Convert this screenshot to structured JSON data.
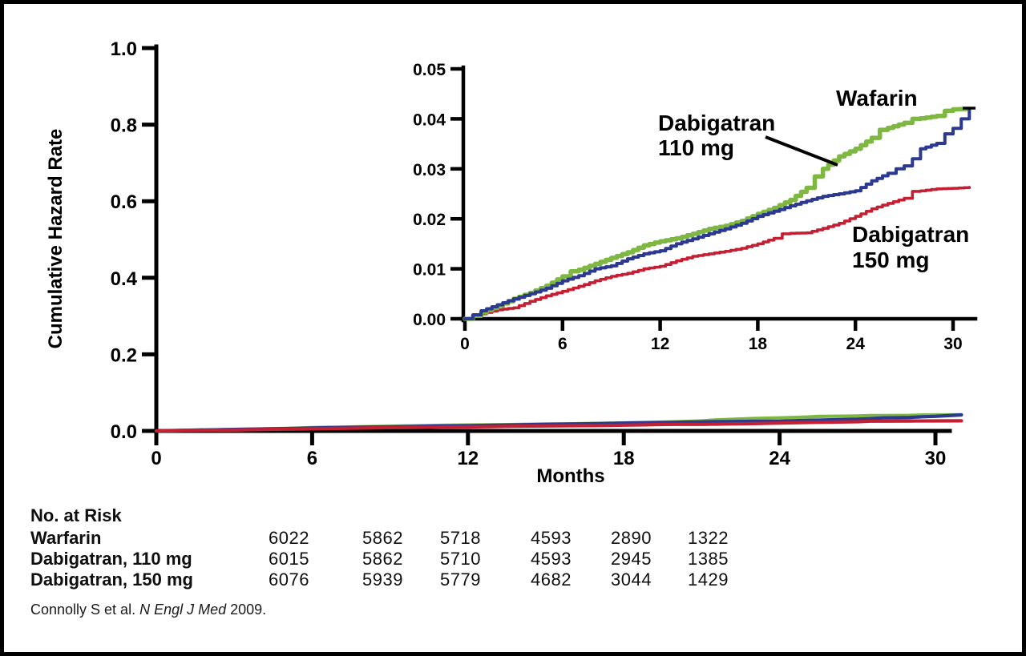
{
  "figure": {
    "y_axis_label": "Cumulative Hazard Rate",
    "x_axis_label": "Months",
    "main_y_tick_labels": [
      "0.0",
      "0.2",
      "0.4",
      "0.6",
      "0.8",
      "1.0"
    ],
    "main_x_tick_labels": [
      "0",
      "6",
      "12",
      "18",
      "24",
      "30"
    ],
    "inset_y_tick_labels": [
      "0.00",
      "0.01",
      "0.02",
      "0.03",
      "0.04",
      "0.05"
    ],
    "inset_x_tick_labels": [
      "0",
      "6",
      "12",
      "18",
      "24",
      "30"
    ]
  },
  "annotations": {
    "warfarin_label": "Wafarin",
    "dabigatran110_line1": "Dabigatran",
    "dabigatran110_line2": "110 mg",
    "dabigatran150_line1": "Dabigatran",
    "dabigatran150_line2": "150 mg"
  },
  "colors": {
    "warfarin": "#7EB843",
    "dabigatran110": "#2B3990",
    "dabigatran150": "#C32033",
    "axis": "#000000"
  },
  "chart_data": {
    "type": "line",
    "description": "Cumulative hazard rate curves (Kaplan-Meier style) with zoomed inset",
    "main_axes": {
      "xlabel": "Months",
      "ylabel": "Cumulative Hazard Rate",
      "xlim": [
        0,
        31
      ],
      "ylim": [
        0,
        1.0
      ],
      "x_ticks": [
        0,
        6,
        12,
        18,
        24,
        30
      ],
      "y_ticks": [
        0.0,
        0.2,
        0.4,
        0.6,
        0.8,
        1.0
      ],
      "grid": false
    },
    "inset_axes": {
      "xlim": [
        0,
        31
      ],
      "ylim": [
        0,
        0.05
      ],
      "x_ticks": [
        0,
        6,
        12,
        18,
        24,
        30
      ],
      "y_ticks": [
        0.0,
        0.01,
        0.02,
        0.03,
        0.04,
        0.05
      ],
      "grid": false
    },
    "series": [
      {
        "name": "Wafarin",
        "color_key": "warfarin",
        "x": [
          0,
          0.5,
          1,
          2,
          3,
          4,
          5,
          6,
          6.5,
          7,
          8,
          9,
          10,
          11,
          12,
          13,
          14,
          15,
          16,
          17,
          18,
          19,
          20,
          21,
          21.5,
          22,
          23,
          24,
          25,
          25.5,
          26,
          27,
          27.5,
          28,
          29,
          29.5,
          30,
          31
        ],
        "y": [
          0,
          0.0006,
          0.0013,
          0.0026,
          0.004,
          0.0052,
          0.0066,
          0.0085,
          0.0095,
          0.0098,
          0.011,
          0.0122,
          0.0133,
          0.0147,
          0.0155,
          0.0161,
          0.017,
          0.018,
          0.0186,
          0.0196,
          0.021,
          0.0222,
          0.0238,
          0.0262,
          0.0285,
          0.03,
          0.0325,
          0.034,
          0.0362,
          0.0378,
          0.0382,
          0.0392,
          0.04,
          0.0401,
          0.0406,
          0.0416,
          0.0419,
          0.042
        ]
      },
      {
        "name": "Dabigatran 110 mg",
        "color_key": "dabigatran110",
        "x": [
          0,
          0.5,
          1,
          2,
          3,
          4,
          5,
          6,
          7,
          8,
          9,
          10,
          11,
          12,
          13,
          14,
          15,
          16,
          17,
          18,
          19,
          20,
          21,
          22,
          23,
          24,
          25,
          26,
          26.5,
          27,
          27.5,
          28,
          29,
          29.5,
          30,
          30.5,
          31
        ],
        "y": [
          0,
          0.0008,
          0.0016,
          0.0028,
          0.004,
          0.005,
          0.0061,
          0.0076,
          0.0086,
          0.01,
          0.0106,
          0.012,
          0.013,
          0.0136,
          0.015,
          0.016,
          0.017,
          0.018,
          0.0191,
          0.0205,
          0.0215,
          0.0226,
          0.0236,
          0.0245,
          0.025,
          0.0256,
          0.0276,
          0.0291,
          0.03,
          0.0306,
          0.032,
          0.034,
          0.0351,
          0.037,
          0.0381,
          0.04,
          0.0418
        ]
      },
      {
        "name": "Dabigatran 150 mg",
        "color_key": "dabigatran150",
        "x": [
          0,
          0.5,
          1,
          2,
          3,
          4,
          5,
          6,
          7,
          8,
          9,
          10,
          11,
          12,
          13,
          14,
          15,
          16,
          17,
          18,
          19,
          19.5,
          20,
          21,
          22,
          23,
          24,
          25,
          26,
          27,
          27.5,
          28,
          29,
          30,
          31
        ],
        "y": [
          0,
          0.0005,
          0.001,
          0.0018,
          0.0022,
          0.0035,
          0.0046,
          0.0055,
          0.0065,
          0.0076,
          0.0085,
          0.0091,
          0.01,
          0.0105,
          0.0116,
          0.0125,
          0.013,
          0.0135,
          0.0141,
          0.015,
          0.0161,
          0.017,
          0.0171,
          0.0172,
          0.0181,
          0.0191,
          0.0205,
          0.022,
          0.0231,
          0.0241,
          0.0255,
          0.0256,
          0.026,
          0.0261,
          0.0263
        ]
      }
    ]
  },
  "risk_table": {
    "title": "No. at Risk",
    "rows": [
      {
        "label": "Warfarin",
        "values": [
          "6022",
          "5862",
          "5718",
          "4593",
          "2890",
          "1322"
        ]
      },
      {
        "label": "Dabigatran, 110 mg",
        "values": [
          "6015",
          "5862",
          "5710",
          "4593",
          "2945",
          "1385"
        ]
      },
      {
        "label": "Dabigatran, 150 mg",
        "values": [
          "6076",
          "5939",
          "5779",
          "4682",
          "3044",
          "1429"
        ]
      }
    ]
  },
  "citation": {
    "prefix": "Connolly S et al. ",
    "journal": "N Engl J Med",
    "suffix": " 2009."
  }
}
